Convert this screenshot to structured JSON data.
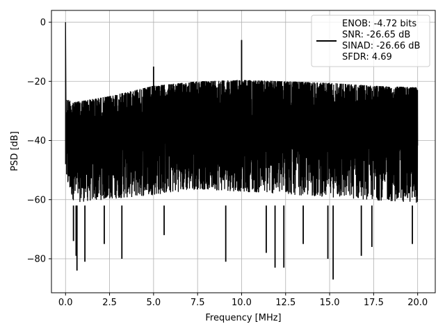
{
  "chart_data": {
    "type": "line",
    "title": "",
    "xlabel": "Frequency [MHz]",
    "ylabel": "PSD [dB]",
    "xlim": [
      -0.8,
      21.0
    ],
    "ylim": [
      -91.5,
      4.0
    ],
    "xticks": [
      0.0,
      2.5,
      5.0,
      7.5,
      10.0,
      12.5,
      15.0,
      17.5,
      20.0
    ],
    "xtick_labels": [
      "0.0",
      "2.5",
      "5.0",
      "7.5",
      "10.0",
      "12.5",
      "15.0",
      "17.5",
      "20.0"
    ],
    "yticks": [
      0,
      -20,
      -40,
      -60,
      -80
    ],
    "ytick_labels": [
      "0",
      "−20",
      "−40",
      "−60",
      "−80"
    ],
    "grid": true,
    "legend_position": "upper-right",
    "legend_lines": [
      "ENOB: -4.72 bits",
      "SNR: -26.65 dB",
      "SINAD: -26.66 dB",
      "SFDR: 4.69"
    ],
    "series": [
      {
        "color": "#000000",
        "description": "dense noisy spectrum",
        "upper_envelope": {
          "x": [
            0.05,
            0.5,
            2.5,
            5.0,
            7.5,
            10.0,
            12.5,
            15.0,
            17.5,
            20.0
          ],
          "y": [
            -26,
            -27,
            -25,
            -21.5,
            -20,
            -19.5,
            -20,
            -20.5,
            -21.5,
            -22
          ]
        },
        "lower_envelope": {
          "x": [
            0.05,
            0.5,
            2.5,
            5.0,
            7.5,
            10.0,
            12.5,
            15.0,
            17.5,
            20.0
          ],
          "y": [
            -60,
            -67,
            -66,
            -65,
            -63,
            -64,
            -65,
            -66,
            -67,
            -68
          ]
        },
        "spikes": [
          {
            "x": 0.0,
            "y": 0.0
          },
          {
            "x": 5.0,
            "y": -15.0
          },
          {
            "x": 10.0,
            "y": -6.0
          }
        ],
        "dips": [
          {
            "x": 0.45,
            "y": -74
          },
          {
            "x": 0.6,
            "y": -79
          },
          {
            "x": 0.65,
            "y": -84
          },
          {
            "x": 1.1,
            "y": -81
          },
          {
            "x": 2.2,
            "y": -75
          },
          {
            "x": 3.2,
            "y": -80
          },
          {
            "x": 5.6,
            "y": -72
          },
          {
            "x": 9.1,
            "y": -81
          },
          {
            "x": 11.4,
            "y": -78
          },
          {
            "x": 11.9,
            "y": -83
          },
          {
            "x": 12.4,
            "y": -83
          },
          {
            "x": 13.5,
            "y": -75
          },
          {
            "x": 14.9,
            "y": -80
          },
          {
            "x": 15.2,
            "y": -87
          },
          {
            "x": 16.8,
            "y": -79
          },
          {
            "x": 17.4,
            "y": -76
          },
          {
            "x": 19.7,
            "y": -75
          }
        ]
      }
    ]
  }
}
